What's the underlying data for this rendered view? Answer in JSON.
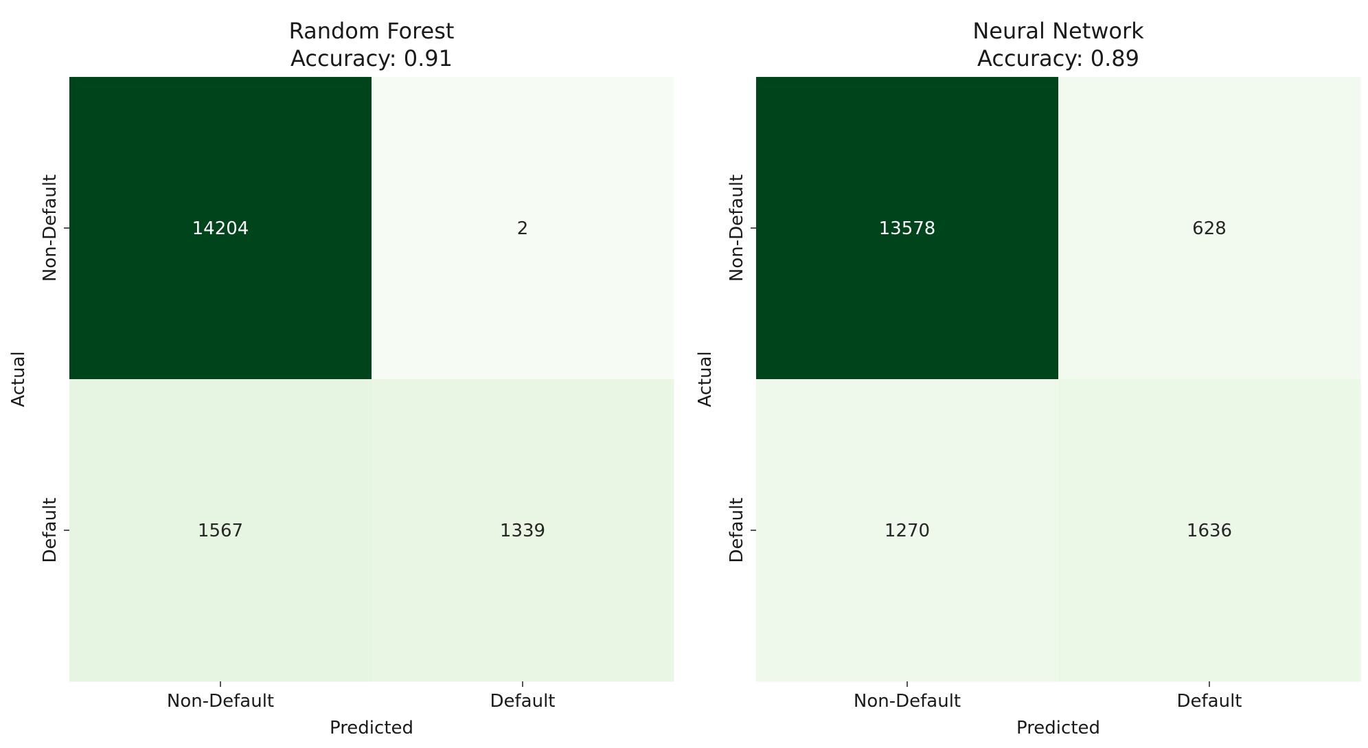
{
  "chart_data": [
    {
      "type": "heatmap",
      "title": "Random Forest",
      "subtitle": "Accuracy: 0.91",
      "xlabel": "Predicted",
      "ylabel": "Actual",
      "x_categories": [
        "Non-Default",
        "Default"
      ],
      "y_categories": [
        "Non-Default",
        "Default"
      ],
      "values": [
        [
          14204,
          2
        ],
        [
          1567,
          1339
        ]
      ],
      "colormap": "Greens",
      "cell_colors": [
        [
          "#00441b",
          "#f6fcf4"
        ],
        [
          "#e6f5e1",
          "#e8f6e3"
        ]
      ],
      "colorbar": false
    },
    {
      "type": "heatmap",
      "title": "Neural Network",
      "subtitle": "Accuracy: 0.89",
      "xlabel": "Predicted",
      "ylabel": "Actual",
      "x_categories": [
        "Non-Default",
        "Default"
      ],
      "y_categories": [
        "Non-Default",
        "Default"
      ],
      "values": [
        [
          13578,
          628
        ],
        [
          1270,
          1636
        ]
      ],
      "colormap": "Greens",
      "cell_colors": [
        [
          "#00441b",
          "#f2faf0"
        ],
        [
          "#eef8eb",
          "#ebf7e7"
        ]
      ],
      "colorbar": false
    }
  ]
}
